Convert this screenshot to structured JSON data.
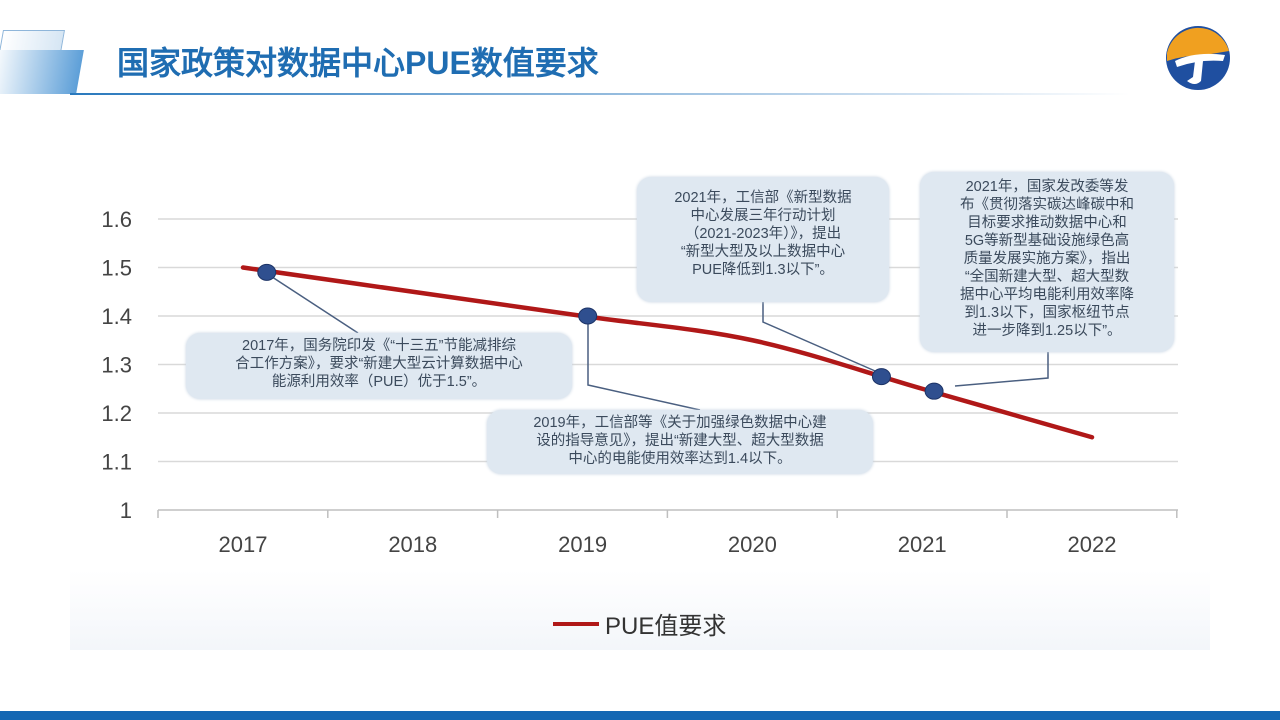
{
  "header": {
    "title": "国家政策对数据中心PUE数值要求"
  },
  "colors": {
    "line": "#b01818",
    "marker": "#2f4f8f",
    "grid": "#d9d9d9",
    "title": "#1f6db2",
    "callout_bg": "#dfe8f1"
  },
  "chart_data": {
    "type": "line",
    "categories": [
      "2017",
      "2018",
      "2019",
      "2020",
      "2021",
      "2022"
    ],
    "series": [
      {
        "name": "PUE值要求",
        "values": [
          1.5,
          1.45,
          1.4,
          1.35,
          1.25,
          1.15
        ]
      }
    ],
    "markers": [
      {
        "x": 2017.14,
        "y": 1.49
      },
      {
        "x": 2019.03,
        "y": 1.4
      },
      {
        "x": 2020.76,
        "y": 1.275
      },
      {
        "x": 2021.07,
        "y": 1.245
      }
    ],
    "yticks": [
      "1",
      "1.1",
      "1.2",
      "1.3",
      "1.4",
      "1.5",
      "1.6"
    ],
    "ylim": [
      1,
      1.6
    ],
    "grid": true,
    "legend": "bottom",
    "annotations": [
      {
        "lines": [
          "2017年，国务院印发《“十三五”节能减排综",
          "合工作方案》，要求“新建大型云计算数据中心",
          "能源利用效率（PUE）优于1.5”。"
        ]
      },
      {
        "lines": [
          "2019年，工信部等《关于加强绿色数据中心建",
          "设的指导意见》，提出“新建大型、超大型数据",
          "中心的电能使用效率达到1.4以下。"
        ]
      },
      {
        "lines": [
          "2021年，工信部《新型数据",
          "中心发展三年行动计划",
          "（2021-2023年）》，提出",
          "“新型大型及以上数据中心",
          "PUE降低到1.3以下”。"
        ]
      },
      {
        "lines": [
          "2021年，国家发改委等发",
          "布《贯彻落实碳达峰碳中和",
          "目标要求推动数据中心和",
          "5G等新型基础设施绿色高",
          "质量发展实施方案》，指出",
          "“全国新建大型、超大型数",
          "据中心平均电能利用效率降",
          "到1.3以下，国家枢纽节点",
          "进一步降到1.25以下”。"
        ]
      }
    ]
  }
}
